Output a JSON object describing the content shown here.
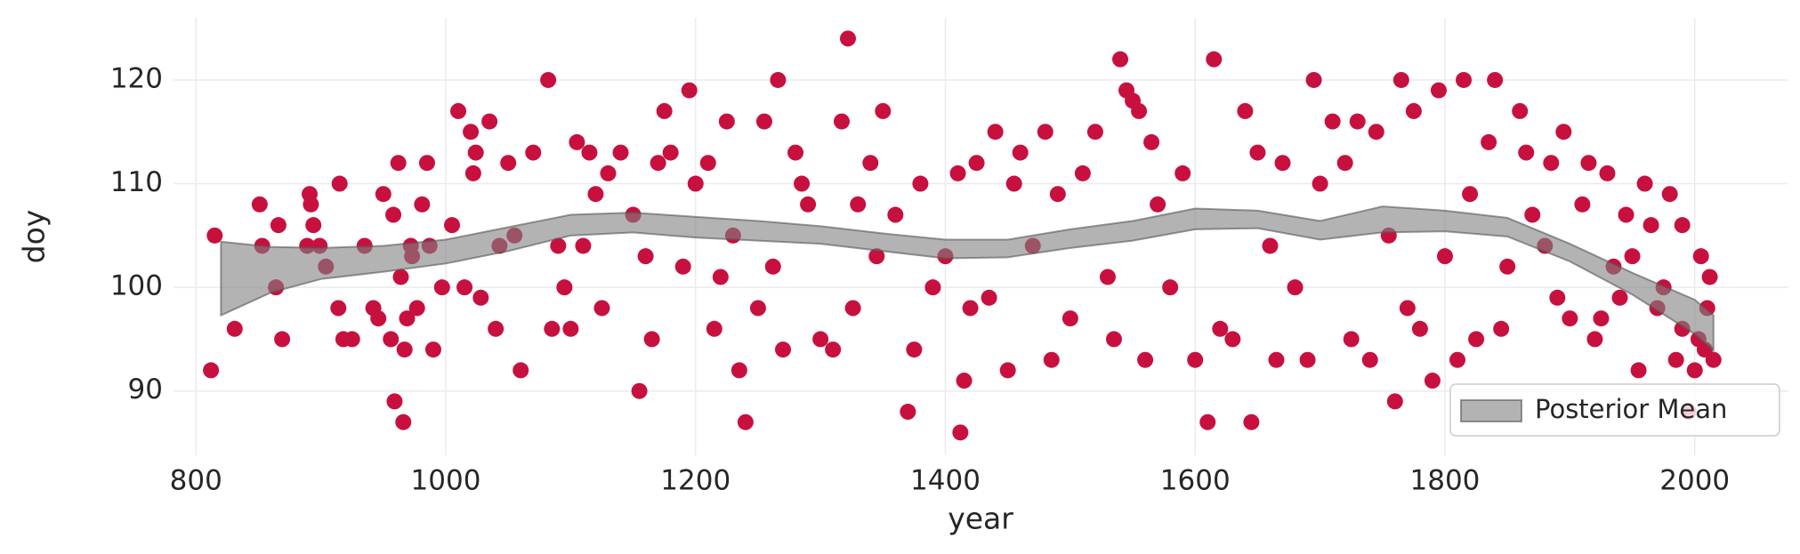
{
  "chart_data": {
    "type": "scatter",
    "xlabel": "year",
    "ylabel": "doy",
    "xlim": [
      782,
      2075
    ],
    "ylim": [
      83.8,
      126
    ],
    "xticks": [
      800,
      1000,
      1200,
      1400,
      1600,
      1800,
      2000
    ],
    "yticks": [
      90,
      100,
      110,
      120
    ],
    "grid": true,
    "legend": "lower right",
    "series": [
      {
        "color": "#c8103f",
        "x": [
          812,
          815,
          831,
          851,
          853,
          864,
          866,
          869,
          889,
          891,
          892,
          894,
          899,
          904,
          914,
          915,
          918,
          925,
          935,
          942,
          946,
          950,
          956,
          958,
          959,
          962,
          964,
          966,
          967,
          969,
          972,
          973,
          977,
          981,
          985,
          987,
          990,
          997,
          1005,
          1010,
          1015,
          1020,
          1022,
          1024,
          1028,
          1035,
          1040,
          1043,
          1050,
          1055,
          1060,
          1070,
          1082,
          1085,
          1090,
          1095,
          1100,
          1105,
          1110,
          1115,
          1120,
          1125,
          1130,
          1140,
          1150,
          1155,
          1160,
          1165,
          1170,
          1175,
          1180,
          1190,
          1195,
          1200,
          1210,
          1215,
          1220,
          1225,
          1230,
          1235,
          1240,
          1250,
          1255,
          1262,
          1266,
          1270,
          1280,
          1285,
          1290,
          1300,
          1310,
          1317,
          1322,
          1326,
          1330,
          1340,
          1345,
          1350,
          1360,
          1370,
          1375,
          1380,
          1390,
          1400,
          1410,
          1412,
          1415,
          1420,
          1425,
          1435,
          1440,
          1450,
          1455,
          1460,
          1470,
          1480,
          1485,
          1490,
          1500,
          1510,
          1520,
          1530,
          1535,
          1540,
          1545,
          1550,
          1555,
          1560,
          1565,
          1570,
          1580,
          1590,
          1600,
          1610,
          1615,
          1620,
          1630,
          1640,
          1645,
          1650,
          1660,
          1665,
          1670,
          1680,
          1690,
          1695,
          1700,
          1710,
          1720,
          1725,
          1730,
          1740,
          1745,
          1755,
          1760,
          1765,
          1770,
          1775,
          1780,
          1790,
          1795,
          1800,
          1810,
          1815,
          1820,
          1825,
          1835,
          1840,
          1845,
          1850,
          1860,
          1865,
          1870,
          1880,
          1885,
          1890,
          1895,
          1900,
          1910,
          1915,
          1920,
          1925,
          1930,
          1935,
          1940,
          1945,
          1950,
          1955,
          1960,
          1965,
          1970,
          1975,
          1980,
          1985,
          1990,
          1990,
          1995,
          2000,
          2003,
          2005,
          2008,
          2010,
          2012,
          2015
        ],
        "values": [
          92,
          105,
          96,
          108,
          104,
          100,
          106,
          95,
          104,
          109,
          108,
          106,
          104,
          102,
          98,
          110,
          95,
          95,
          104,
          98,
          97,
          109,
          95,
          107,
          89,
          112,
          101,
          87,
          94,
          97,
          104,
          103,
          98,
          108,
          112,
          104,
          94,
          100,
          106,
          117,
          100,
          115,
          111,
          113,
          99,
          116,
          96,
          104,
          112,
          105,
          92,
          113,
          120,
          96,
          104,
          100,
          96,
          114,
          104,
          113,
          109,
          98,
          111,
          113,
          107,
          90,
          103,
          95,
          112,
          117,
          113,
          102,
          119,
          110,
          112,
          96,
          101,
          116,
          105,
          92,
          87,
          98,
          116,
          102,
          120,
          94,
          113,
          110,
          108,
          95,
          94,
          116,
          124,
          98,
          108,
          112,
          103,
          117,
          107,
          88,
          94,
          110,
          100,
          103,
          111,
          86,
          91,
          98,
          112,
          99,
          115,
          92,
          110,
          113,
          104,
          115,
          93,
          109,
          97,
          111,
          115,
          101,
          95,
          122,
          119,
          118,
          117,
          93,
          114,
          108,
          100,
          111,
          93,
          87,
          122,
          96,
          95,
          117,
          87,
          113,
          104,
          93,
          112,
          100,
          93,
          120,
          110,
          116,
          112,
          95,
          116,
          93,
          115,
          105,
          89,
          120,
          98,
          117,
          96,
          91,
          119,
          103,
          93,
          120,
          109,
          95,
          114,
          120,
          96,
          102,
          117,
          113,
          107,
          104,
          112,
          99,
          115,
          97,
          108,
          112,
          95,
          97,
          111,
          102,
          99,
          107,
          103,
          92,
          110,
          106,
          98,
          100,
          109,
          93,
          106,
          96,
          88,
          92,
          95,
          103,
          94,
          98,
          101,
          93
        ]
      }
    ],
    "band": {
      "name": "Posterior Mean",
      "color": "#808080",
      "x": [
        820,
        860,
        900,
        950,
        1000,
        1050,
        1100,
        1150,
        1200,
        1250,
        1300,
        1350,
        1400,
        1450,
        1500,
        1550,
        1600,
        1650,
        1700,
        1750,
        1800,
        1850,
        1900,
        1950,
        2000,
        2015
      ],
      "lower": [
        97.3,
        99.5,
        100.8,
        101.5,
        102.3,
        103.5,
        105.0,
        105.3,
        104.8,
        104.5,
        104.2,
        103.5,
        102.8,
        102.9,
        103.8,
        104.5,
        105.6,
        105.7,
        104.6,
        105.3,
        105.4,
        104.9,
        102.5,
        99.3,
        95.5,
        93.9
      ],
      "upper": [
        104.4,
        103.9,
        103.8,
        104.0,
        104.6,
        105.8,
        107.0,
        107.2,
        106.8,
        106.4,
        105.9,
        105.2,
        104.6,
        104.6,
        105.6,
        106.4,
        107.6,
        107.4,
        106.4,
        107.8,
        107.4,
        106.7,
        104.2,
        101.4,
        98.8,
        97.3
      ]
    }
  }
}
